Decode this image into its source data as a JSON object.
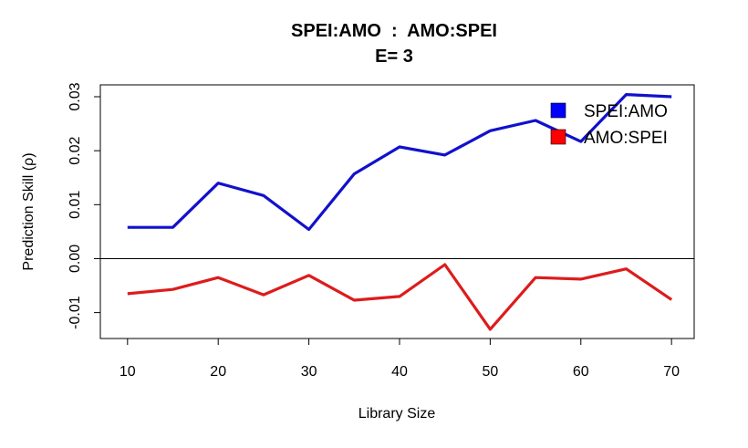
{
  "chart_data": {
    "type": "line",
    "title": "SPEI:AMO  :  AMO:SPEI",
    "subtitle": "E= 3",
    "xlabel": "Library Size",
    "ylabel": "Prediction Skill (ρ)",
    "xlim": [
      7,
      72.5
    ],
    "ylim": [
      -0.0148,
      0.0322
    ],
    "x_ticks": [
      "10",
      "20",
      "30",
      "40",
      "50",
      "60",
      "70"
    ],
    "y_ticks": [
      "-0.01",
      "0.00",
      "0.01",
      "0.02",
      "0.03"
    ],
    "x": [
      10,
      15,
      20,
      25,
      30,
      35,
      40,
      45,
      50,
      55,
      60,
      65,
      70
    ],
    "reference_line": 0,
    "legend_position": "top-right",
    "series": [
      {
        "name": "SPEI:AMO",
        "color": "#1111cc",
        "legend_color": "#0000ff",
        "values": [
          0.0058,
          0.0058,
          0.014,
          0.0117,
          0.0054,
          0.0157,
          0.0207,
          0.0192,
          0.0237,
          0.0256,
          0.0217,
          0.0304,
          0.03
        ]
      },
      {
        "name": "AMO:SPEI",
        "color": "#dd1c1c",
        "legend_color": "#ff0000",
        "values": [
          -0.0065,
          -0.0057,
          -0.0035,
          -0.0067,
          -0.0031,
          -0.0077,
          -0.007,
          -0.0011,
          -0.0131,
          -0.0035,
          -0.0038,
          -0.0019,
          -0.0076
        ]
      }
    ],
    "grid": false
  }
}
